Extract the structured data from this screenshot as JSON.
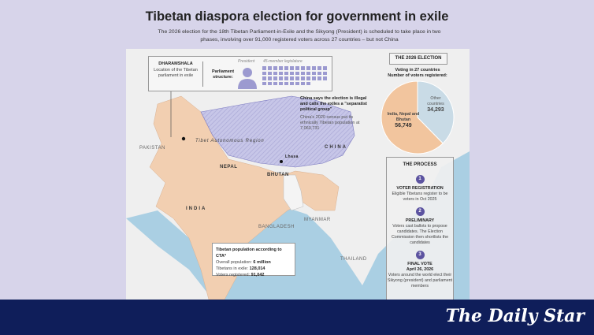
{
  "title": "Tibetan diaspora election for government in exile",
  "subtitle": "The 2026 election for the 18th Tibetan Parliament-in-Exile and the Sikyong (President) is scheduled to take place in two phases, involving over 91,000 registered voters across 27 countries – but not China",
  "callout": {
    "heading": "DHARAMSHALA",
    "text": "Location of the Tibetan parliament in exile",
    "structure_label": "Parliament structure:",
    "president_label": "President",
    "legislature_label": "45-member legislature",
    "legislature_seats": 45
  },
  "china_note": {
    "heading": "China says the election is illegal and calls the exiles a \"separatist political group\"",
    "text": "China's 2020 census put its ethnically Tibetan population at 7,060,731"
  },
  "map_labels": {
    "tar": "Tibet Autonomous Region",
    "lhasa": "Lhasa",
    "china": "CHINA",
    "pakistan": "PAKISTAN",
    "nepal": "NEPAL",
    "bhutan": "BHUTAN",
    "india": "INDIA",
    "bangladesh": "BANGLADESH",
    "myanmar": "MYANMAR",
    "thailand": "THAILAND"
  },
  "population": {
    "heading": "Tibetan population according to CTA*",
    "rows": [
      {
        "label": "Overall population: ",
        "value": "6 million"
      },
      {
        "label": "Tibetans in exile: ",
        "value": "128,014"
      },
      {
        "label": "Voters registered: ",
        "value": "91,042"
      }
    ]
  },
  "election": {
    "heading": "THE 2026 ELECTION",
    "voting": "Voting in 27 countries",
    "voters_label": "Number of voters registered:",
    "slices": [
      {
        "label": "India, Nepal and Bhutan",
        "value": 56749,
        "display": "56,749",
        "color": "#f2c59e"
      },
      {
        "label": "Other countries",
        "value": 34293,
        "display": "34,293",
        "color": "#c9dbe6"
      }
    ]
  },
  "process": {
    "heading": "THE PROCESS",
    "steps": [
      {
        "n": "1",
        "title": "VOTER REGISTRATION",
        "date": "",
        "text": "Eligible Tibetans register to be voters in Oct 2025"
      },
      {
        "n": "2",
        "title": "PRELIMINARY",
        "date": "",
        "text": "Voters cast ballots to propose candidates. The Election Commission then shortlists the candidates"
      },
      {
        "n": "3",
        "title": "FINAL VOTE",
        "date": "April 26, 2026",
        "text": "Voters around the world elect their Sikyong (president) and parliament members"
      }
    ]
  },
  "brand": "The Daily Star",
  "colors": {
    "background": "#d7d4ea",
    "india": "#f2cfb1",
    "tibet": "#c7c6e8",
    "sea": "#aacfe3",
    "footer": "#0f1e5a",
    "accent": "#5c53a0"
  }
}
